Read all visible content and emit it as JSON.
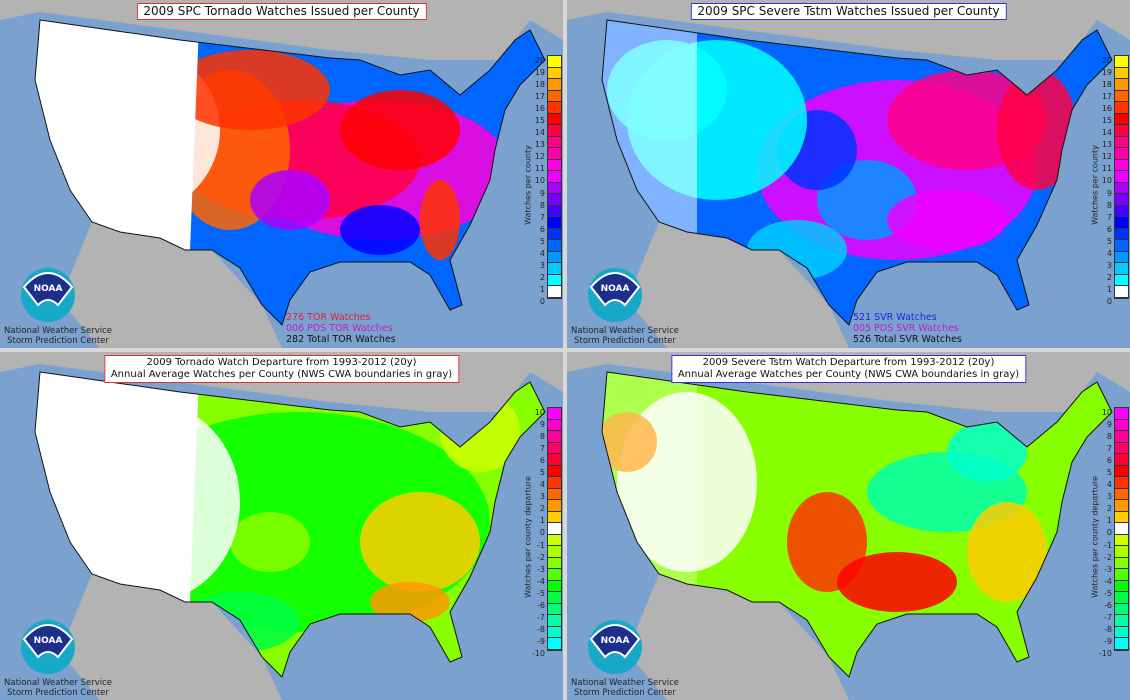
{
  "panels": [
    {
      "title": "2009 SPC Tornado Watches Issued per County",
      "title_border": "#e03030",
      "counts": [
        {
          "text": "276 TOR Watches",
          "color": "#e0203a"
        },
        {
          "text": "006 PDS TOR Watches",
          "color": "#c020c0"
        },
        {
          "text": "282 Total TOR Watches",
          "color": "#111111"
        }
      ],
      "colorbar": "counts",
      "colorbar_label": "Watches per county"
    },
    {
      "title": "2009 SPC Severe Tstm Watches Issued per County",
      "title_border": "#3030e0",
      "counts": [
        {
          "text": "521 SVR Watches",
          "color": "#2020e0"
        },
        {
          "text": "005 PDS SVR Watches",
          "color": "#c020c0"
        },
        {
          "text": "526 Total SVR Watches",
          "color": "#111111"
        }
      ],
      "colorbar": "counts",
      "colorbar_label": "Watches per county"
    },
    {
      "title": "2009 Tornado Watch Departure from 1993-2012 (20y)",
      "subtitle": "Annual Average Watches per County (NWS CWA boundaries in gray)",
      "title_border": "#e03030",
      "colorbar": "departure",
      "colorbar_label": "Watches per county departure"
    },
    {
      "title": "2009 Severe Tstm Watch Departure from 1993-2012 (20y)",
      "subtitle": "Annual Average Watches per County (NWS CWA boundaries in gray)",
      "title_border": "#3030e0",
      "colorbar": "departure",
      "colorbar_label": "Watches per county departure"
    }
  ],
  "logo": {
    "text": "NOAA",
    "org_line1": "National Weather Service",
    "org_line2": "Storm Prediction Center"
  },
  "scales": {
    "counts": {
      "ticks": [
        "20",
        "19",
        "18",
        "17",
        "16",
        "15",
        "14",
        "13",
        "12",
        "11",
        "10",
        "9",
        "8",
        "7",
        "6",
        "5",
        "4",
        "3",
        "2",
        "1",
        "0"
      ],
      "colors": [
        "#ffff00",
        "#ffcc00",
        "#ff9900",
        "#ff6600",
        "#ff3300",
        "#ff0000",
        "#ff0044",
        "#ff0088",
        "#ff00aa",
        "#ff00dd",
        "#ee00ff",
        "#aa00ff",
        "#7700ff",
        "#4400ff",
        "#0000ff",
        "#0033ff",
        "#0066ff",
        "#0099ff",
        "#00ccff",
        "#00ffff",
        "#ffffff"
      ]
    },
    "departure": {
      "ticks": [
        "10",
        "9",
        "8",
        "7",
        "6",
        "5",
        "4",
        "3",
        "2",
        "1",
        "0",
        "-1",
        "-2",
        "-3",
        "-4",
        "-5",
        "-6",
        "-7",
        "-8",
        "-9",
        "-10"
      ],
      "colors": [
        "#ff00ff",
        "#ff00cc",
        "#ff0099",
        "#ff0066",
        "#ff0033",
        "#ff0000",
        "#ff3300",
        "#ff6600",
        "#ff9900",
        "#ffcc00",
        "#ffffff",
        "#ccff00",
        "#aaff00",
        "#88ff00",
        "#55ff00",
        "#00ff00",
        "#00ff44",
        "#00ff77",
        "#00ffaa",
        "#00ffcc",
        "#00ffff"
      ]
    }
  }
}
